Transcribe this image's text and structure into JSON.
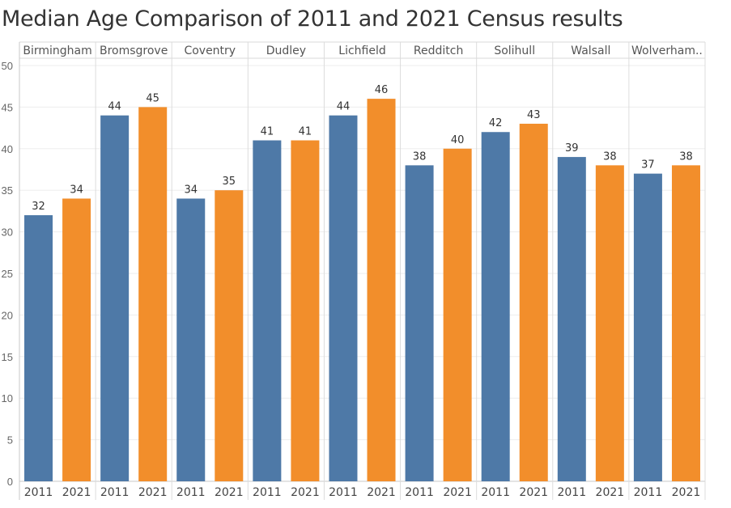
{
  "chart_data": {
    "type": "bar",
    "title": "Median Age Comparison of 2011 and 2021 Census results",
    "ylim": [
      0,
      50
    ],
    "yticks": [
      0,
      5,
      10,
      15,
      20,
      25,
      30,
      35,
      40,
      45,
      50
    ],
    "series_names": [
      "2011",
      "2021"
    ],
    "colors": [
      "#4e79a7",
      "#f28e2b"
    ],
    "categories": [
      "Birmingham",
      "Bromsgrove",
      "Coventry",
      "Dudley",
      "Lichfield",
      "Redditch",
      "Solihull",
      "Walsall",
      "Wolverham.."
    ],
    "series": [
      {
        "name": "2011",
        "values": [
          32,
          44,
          34,
          41,
          44,
          38,
          42,
          39,
          37
        ]
      },
      {
        "name": "2021",
        "values": [
          34,
          45,
          35,
          41,
          46,
          40,
          43,
          38,
          38
        ]
      }
    ]
  }
}
